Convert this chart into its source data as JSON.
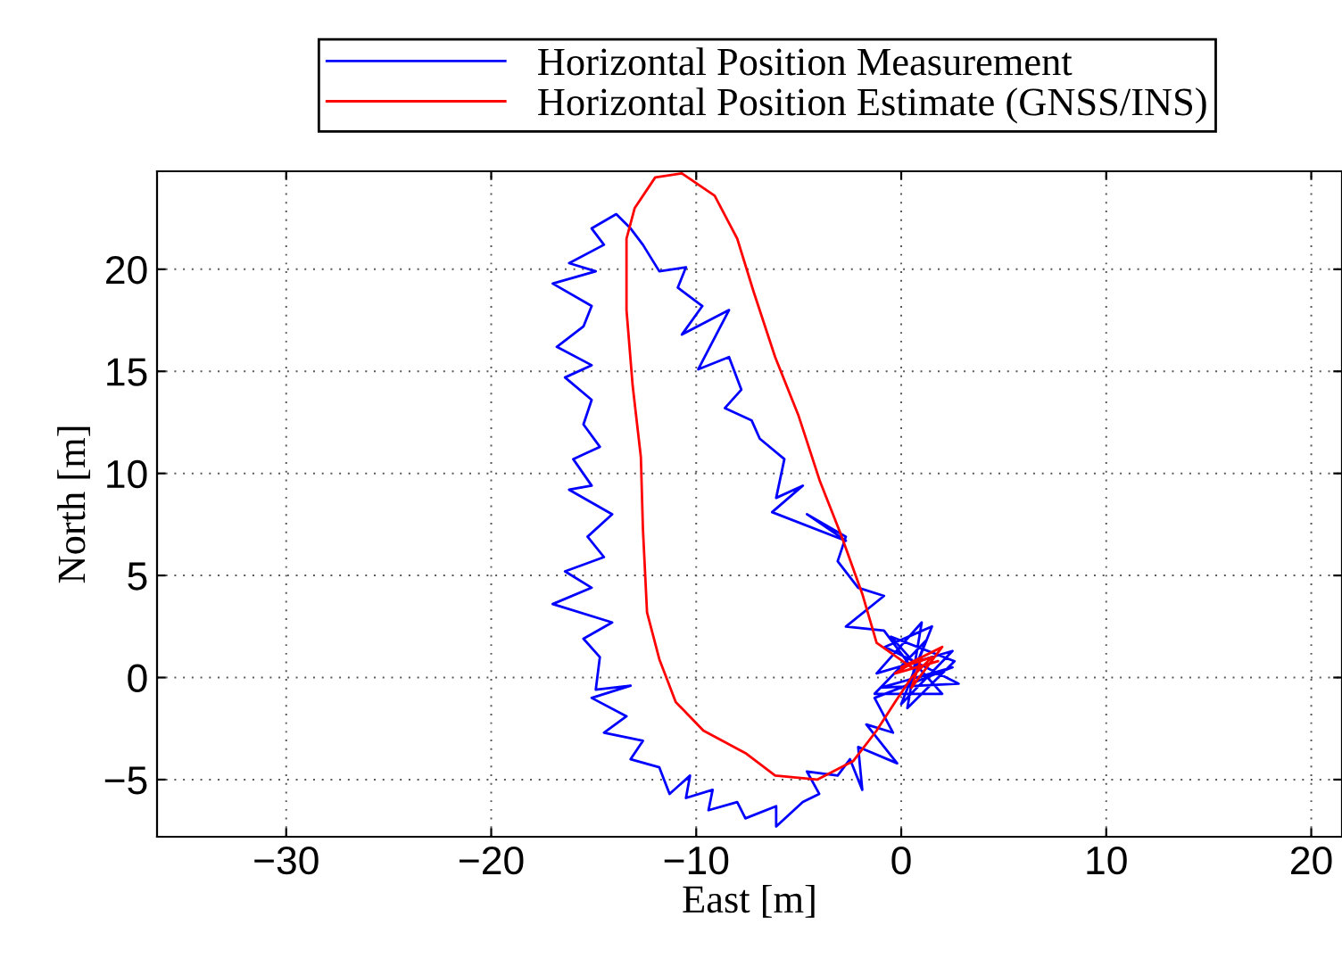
{
  "chart_data": {
    "type": "line",
    "xlabel": "East [m]",
    "ylabel": "North [m]",
    "xlim": [
      -36.3,
      21.5
    ],
    "ylim": [
      -7.8,
      24.8
    ],
    "xticks": [
      -30,
      -20,
      -10,
      0,
      10,
      20
    ],
    "yticks": [
      -5,
      0,
      5,
      10,
      15,
      20
    ],
    "grid": true,
    "legend": "top",
    "series": [
      {
        "name": "Horizontal Position Measurement",
        "color": "#0000ff",
        "x": [
          0.5,
          -0.84,
          -2.7,
          -0.84,
          -2.1,
          -3.1,
          -2.7,
          -4.6,
          -2.7,
          -6.3,
          -4.8,
          -6.1,
          -5.7,
          -6.9,
          -7.3,
          -8.6,
          -7.8,
          -8.4,
          -9.9,
          -8.4,
          -10.7,
          -9.7,
          -10.9,
          -10.5,
          -11.8,
          -12.6,
          -13.2,
          -13.9,
          -15.1,
          -14.5,
          -16.2,
          -14.9,
          -17.0,
          -15.1,
          -15.5,
          -16.8,
          -15.1,
          -16.4,
          -15.1,
          -15.5,
          -14.7,
          -16.0,
          -15.1,
          -16.2,
          -14.1,
          -15.3,
          -14.5,
          -16.4,
          -15.1,
          -17.0,
          -14.1,
          -15.5,
          -14.7,
          -14.9,
          -13.2,
          -15.1,
          -13.4,
          -14.5,
          -12.6,
          -13.2,
          -11.8,
          -11.3,
          -10.3,
          -10.5,
          -9.2,
          -9.4,
          -8.0,
          -7.6,
          -6.1,
          -6.1,
          -4.8,
          -4.0,
          -4.6,
          -3.1,
          -2.5,
          -1.9,
          -2.1,
          -0.2,
          -1.7,
          -0.4,
          -1.3,
          2.5,
          -1.0,
          2.8,
          -0.8,
          1.5,
          0.0,
          2.5,
          -1.2,
          1.0,
          0.3,
          2.6,
          -0.5,
          2.0,
          -1.3,
          1.2,
          0.5
        ],
        "values": [
          0.5,
          2.3,
          2.5,
          4.0,
          4.4,
          5.7,
          6.9,
          8.0,
          6.7,
          8.1,
          9.4,
          8.8,
          10.7,
          11.7,
          12.6,
          13.2,
          14.1,
          15.7,
          15.1,
          18.0,
          16.8,
          18.2,
          19.1,
          20.1,
          19.9,
          21.2,
          22.0,
          22.7,
          22.0,
          21.2,
          20.3,
          19.9,
          19.3,
          18.2,
          17.2,
          16.2,
          15.3,
          14.7,
          13.6,
          12.4,
          11.3,
          10.7,
          9.4,
          9.2,
          8.0,
          6.9,
          5.9,
          5.2,
          4.4,
          3.6,
          2.7,
          1.9,
          1.0,
          -0.6,
          -0.4,
          -1.0,
          -1.9,
          -2.7,
          -3.1,
          -4.0,
          -4.4,
          -5.7,
          -4.8,
          -5.9,
          -5.5,
          -6.5,
          -6.1,
          -6.9,
          -6.3,
          -7.3,
          -6.1,
          -5.7,
          -4.6,
          -4.8,
          -4.0,
          -5.5,
          -3.4,
          -4.2,
          -2.3,
          -2.7,
          -1.0,
          0.5,
          -0.5,
          -0.3,
          1.5,
          2.5,
          -1.3,
          1.3,
          0.2,
          2.7,
          -1.5,
          0.8,
          2.0,
          -0.8,
          -0.8,
          1.8,
          0.0
        ]
      },
      {
        "name": "Horizontal Position Estimate (GNSS/INS)",
        "color": "#ff0000",
        "x": [
          0.5,
          -1.2,
          -1.9,
          -2.94,
          -3.96,
          -5.0,
          -6.15,
          -7.2,
          -8.0,
          -9.1,
          -10.7,
          -12.0,
          -13.0,
          -13.4,
          -13.4,
          -13.1,
          -12.7,
          -12.6,
          -12.4,
          -11.8,
          -11.0,
          -9.65,
          -7.6,
          -6.15,
          -4.1,
          -2.35,
          -1.2,
          -0.3,
          0.5,
          1.5,
          0.0,
          2.0,
          0.5,
          1.0,
          -0.3,
          1.8,
          0.8
        ],
        "values": [
          0.5,
          1.7,
          4.1,
          7.0,
          9.6,
          12.8,
          15.7,
          18.9,
          21.5,
          23.6,
          24.7,
          24.5,
          23.0,
          21.5,
          18.0,
          14.3,
          10.8,
          7.3,
          3.2,
          0.9,
          -1.2,
          -2.6,
          -3.7,
          -4.8,
          -5.0,
          -4.1,
          -2.6,
          -1.2,
          0.0,
          1.0,
          0.5,
          1.5,
          -0.5,
          1.0,
          0.2,
          0.8,
          0.5
        ]
      }
    ]
  }
}
